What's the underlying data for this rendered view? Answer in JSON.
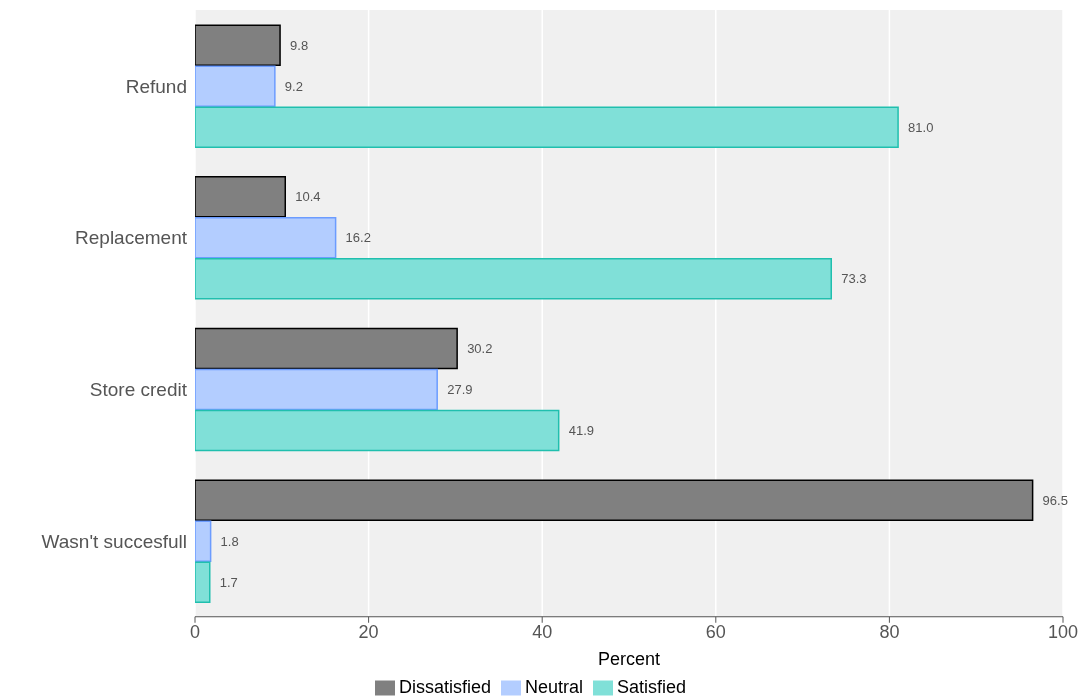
{
  "chart_data": {
    "type": "bar",
    "orientation": "horizontal",
    "xlabel": "Percent",
    "categories": [
      "Refund",
      "Replacement",
      "Store credit",
      "Wasn't succesfull"
    ],
    "series": [
      {
        "name": "Dissatisfied",
        "color": "#808080",
        "values": [
          9.8,
          10.4,
          30.2,
          96.5
        ],
        "value_labels": [
          "9.8",
          "10.4",
          "30.2",
          "96.5"
        ]
      },
      {
        "name": "Neutral",
        "color": "#b3cdff",
        "values": [
          9.2,
          16.2,
          27.9,
          1.8
        ],
        "value_labels": [
          "9.2",
          "16.2",
          "27.9",
          "1.8"
        ]
      },
      {
        "name": "Satisfied",
        "color": "#80e0d8",
        "values": [
          81.0,
          73.3,
          41.9,
          1.7
        ],
        "value_labels": [
          "81.0",
          "73.3",
          "41.9",
          "1.7"
        ]
      }
    ],
    "xlim": [
      0,
      100
    ],
    "xticks": [
      0,
      20,
      40,
      60,
      80,
      100
    ],
    "grid": "x",
    "legend": "bottom"
  }
}
